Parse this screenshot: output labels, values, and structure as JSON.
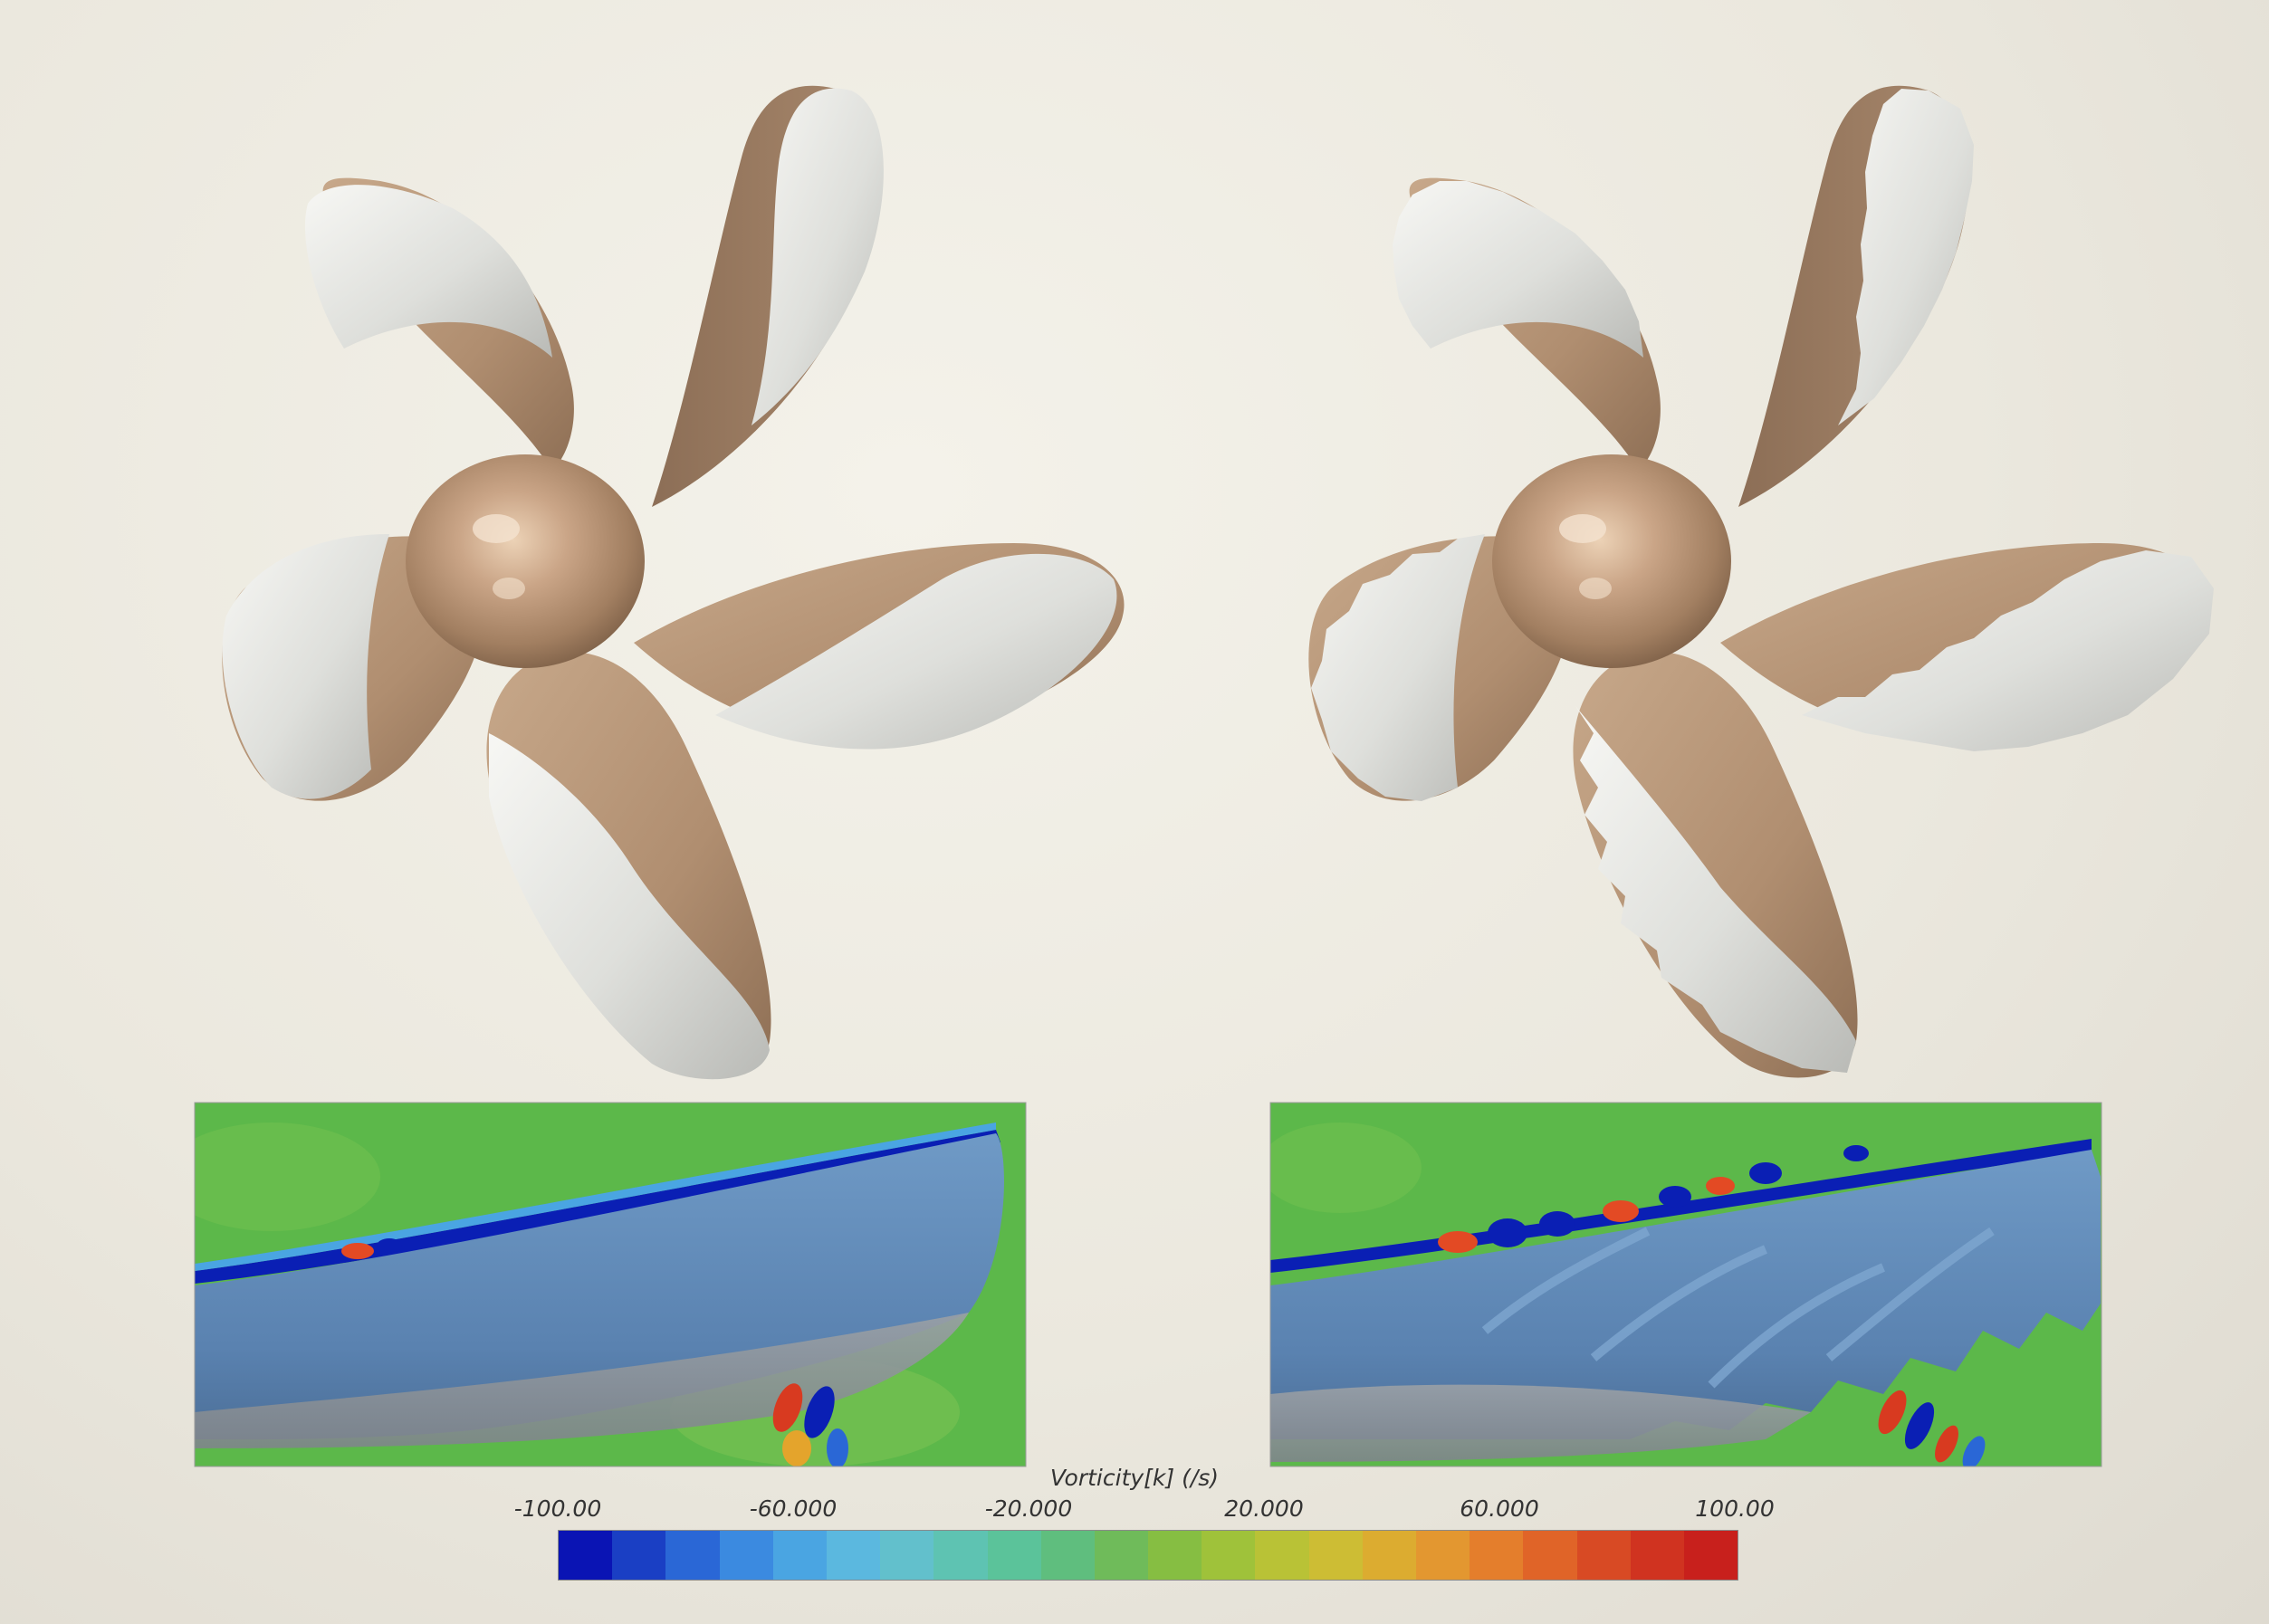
{
  "colorbar": {
    "title": "Vorticity[k] (/s)",
    "ticks": [
      "-100.00",
      "-60.000",
      "-20.000",
      "20.000",
      "60.000",
      "100.00"
    ],
    "range": [
      -100,
      100
    ],
    "colors": [
      "#0a14b4",
      "#1a3fc4",
      "#2a67d6",
      "#3b8ae0",
      "#4aa5e2",
      "#5bb8df",
      "#62c0cc",
      "#5ec3b2",
      "#5bc39a",
      "#5fbe7e",
      "#6fbb5a",
      "#86be42",
      "#9fc23a",
      "#b9c236",
      "#cdbd34",
      "#dcac30",
      "#e39730",
      "#e47e2c",
      "#e06428",
      "#d84a24",
      "#d03320",
      "#c8201c"
    ]
  },
  "colors": {
    "bronze": "#b99877",
    "foam": "#e6e6e2",
    "field_green": "#5cb84a",
    "blade_blue": "#5b86b6"
  }
}
